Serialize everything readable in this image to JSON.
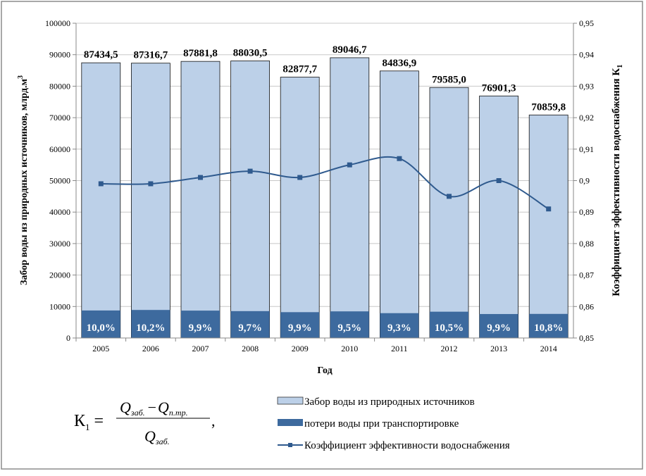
{
  "chart_data": {
    "type": "bar",
    "stacked": true,
    "categories": [
      "2005",
      "2006",
      "2007",
      "2008",
      "2009",
      "2010",
      "2011",
      "2012",
      "2013",
      "2014"
    ],
    "xlabel": "Год",
    "ylabel": "Забор воды из природных источников, млрд.м",
    "ylabel_superscript": "3",
    "y2label": "Коэффициент эффективности водоснабжения К",
    "y2label_subscript": "1",
    "ylim": [
      0,
      100000
    ],
    "yticks": [
      "0",
      "10000",
      "20000",
      "30000",
      "40000",
      "50000",
      "60000",
      "70000",
      "80000",
      "90000",
      "100000"
    ],
    "y2lim": [
      0.85,
      0.95
    ],
    "y2ticks": [
      "0,85",
      "0,86",
      "0,87",
      "0,88",
      "0,89",
      "0,9",
      "0,91",
      "0,92",
      "0,93",
      "0,94",
      "0,95"
    ],
    "grid": true,
    "legend_position": "bottom-right",
    "series": [
      {
        "name": "Забор воды из природных источников",
        "type": "bar",
        "color": "#bcd0e8",
        "values": [
          87434.5,
          87316.7,
          87881.8,
          88030.5,
          82877.7,
          89046.7,
          84836.9,
          79585.0,
          76901.3,
          70859.8
        ],
        "labels": [
          "87434,5",
          "87316,7",
          "87881,8",
          "88030,5",
          "82877,7",
          "89046,7",
          "84836,9",
          "79585,0",
          "76901,3",
          "70859,8"
        ]
      },
      {
        "name": "потери воды при транспортировке",
        "type": "bar",
        "color": "#3d6a9e",
        "percent": [
          10.0,
          10.2,
          9.9,
          9.7,
          9.9,
          9.5,
          9.3,
          10.5,
          9.9,
          10.8
        ],
        "labels": [
          "10,0%",
          "10,2%",
          "9,9%",
          "9,7%",
          "9,9%",
          "9,5%",
          "9,3%",
          "10,5%",
          "9,9%",
          "10,8%"
        ]
      },
      {
        "name": "Коэффициент эффективности водоснабжения",
        "type": "line",
        "axis": "right",
        "color": "#2f5a8e",
        "values": [
          0.899,
          0.899,
          0.901,
          0.903,
          0.901,
          0.905,
          0.907,
          0.895,
          0.9,
          0.891
        ]
      }
    ]
  },
  "formula": {
    "lhs": "К",
    "lhs_sub": "1",
    "eq": "=",
    "q": "Q",
    "sub1": "заб.",
    "minus": "−",
    "sub2": "п.тр.",
    "sub3": "заб.",
    "tail": ","
  }
}
